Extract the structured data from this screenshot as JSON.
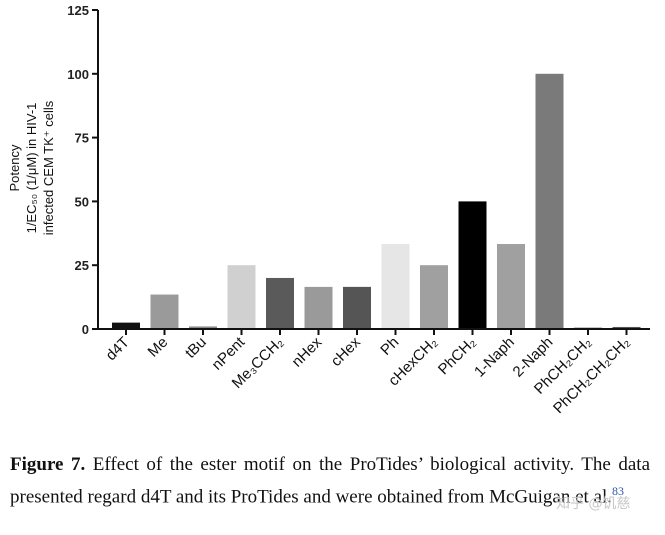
{
  "chart_data": {
    "type": "bar",
    "categories": [
      "d4T",
      "Me",
      "tBu",
      "nPent",
      "Me₃CCH₂",
      "nHex",
      "cHex",
      "Ph",
      "cHexCH₂",
      "PhCH₂",
      "1-Naph",
      "2-Naph",
      "PhCH₂CH₂",
      "PhCH₂CH₂CH₂"
    ],
    "values": [
      2.5,
      13.5,
      1.0,
      25.0,
      20.0,
      16.5,
      16.5,
      33.3,
      25.0,
      50.0,
      33.3,
      100.0,
      0.5,
      0.8
    ],
    "colors": [
      "#111111",
      "#9a9a9a",
      "#8a8a8a",
      "#d0d0d0",
      "#5a5a5a",
      "#9a9a9a",
      "#555555",
      "#e6e6e6",
      "#a0a0a0",
      "#000000",
      "#a0a0a0",
      "#7a7a7a",
      "#333333",
      "#555555"
    ],
    "ylabel_lines": [
      "Potency",
      "1/EC₅₀ (1/μM) in HIV-1",
      "infected CEM TK⁺ cells"
    ],
    "ylim": [
      0,
      125
    ],
    "yticks": [
      "0",
      "25",
      "50",
      "75",
      "100",
      "125"
    ],
    "grid": false
  },
  "caption": {
    "figure_label": "Figure 7.",
    "text": "Effect of the ester motif on the ProTides’ biological activity. The data presented regard d4T and its ProTides and were obtained from McGuigan et al.",
    "ref": "83"
  },
  "watermark": "知乎 @饥慈"
}
